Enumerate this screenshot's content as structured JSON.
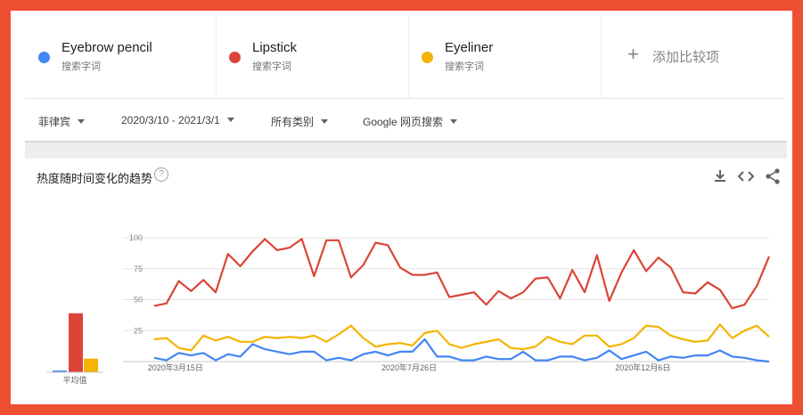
{
  "terms": [
    {
      "name": "Eyebrow pencil",
      "sub": "搜索字词",
      "color": "#4285f4"
    },
    {
      "name": "Lipstick",
      "sub": "搜索字词",
      "color": "#db4437"
    },
    {
      "name": "Eyeliner",
      "sub": "搜索字词",
      "color": "#f4b400"
    }
  ],
  "add_compare": {
    "label": "添加比较项"
  },
  "filters": {
    "region": "菲律宾",
    "date_range": "2020/3/10 - 2021/3/1",
    "category": "所有类别",
    "search_type": "Google 网页搜索"
  },
  "card": {
    "title": "热度随时间变化的趋势"
  },
  "icons": {
    "help": "help-icon",
    "download": "download-icon",
    "embed": "embed-icon",
    "share": "share-icon"
  },
  "chart_data": {
    "type": "line",
    "ylim": [
      0,
      100
    ],
    "yticks": [
      25,
      50,
      75,
      100
    ],
    "x_tick_labels": [
      "2020年3月15日",
      "2020年7月26日",
      "2020年12月6日"
    ],
    "x_tick_index": [
      1,
      20,
      39
    ],
    "average": {
      "label": "平均值",
      "values": [
        2,
        69,
        16
      ]
    },
    "series": [
      {
        "name": "Lipstick",
        "color": "#db4437",
        "values": [
          45,
          47,
          65,
          57,
          66,
          56,
          87,
          77,
          89,
          99,
          90,
          92,
          99,
          69,
          98,
          98,
          68,
          78,
          96,
          94,
          76,
          70,
          70,
          72,
          52,
          54,
          56,
          46,
          57,
          51,
          56,
          67,
          68,
          51,
          74,
          56,
          86,
          49,
          72,
          90,
          73,
          84,
          76,
          56,
          55,
          64,
          58,
          43,
          46,
          61,
          85
        ]
      },
      {
        "name": "Eyeliner",
        "color": "#f4b400",
        "values": [
          18,
          19,
          11,
          9,
          21,
          17,
          20,
          16,
          16,
          20,
          19,
          20,
          19,
          21,
          16,
          22,
          29,
          19,
          12,
          14,
          15,
          13,
          23,
          25,
          14,
          11,
          14,
          16,
          18,
          11,
          10,
          12,
          20,
          16,
          14,
          21,
          21,
          12,
          14,
          19,
          29,
          28,
          21,
          18,
          16,
          17,
          30,
          19,
          25,
          29,
          20
        ]
      },
      {
        "name": "Eyebrow pencil",
        "color": "#4285f4",
        "values": [
          3,
          1,
          7,
          5,
          7,
          1,
          6,
          4,
          14,
          10,
          8,
          6,
          8,
          8,
          1,
          3,
          1,
          6,
          8,
          5,
          8,
          8,
          18,
          4,
          4,
          1,
          1,
          4,
          2,
          2,
          8,
          1,
          1,
          4,
          4,
          1,
          3,
          9,
          2,
          5,
          8,
          1,
          4,
          3,
          5,
          5,
          9,
          4,
          3,
          1,
          0
        ]
      }
    ]
  }
}
